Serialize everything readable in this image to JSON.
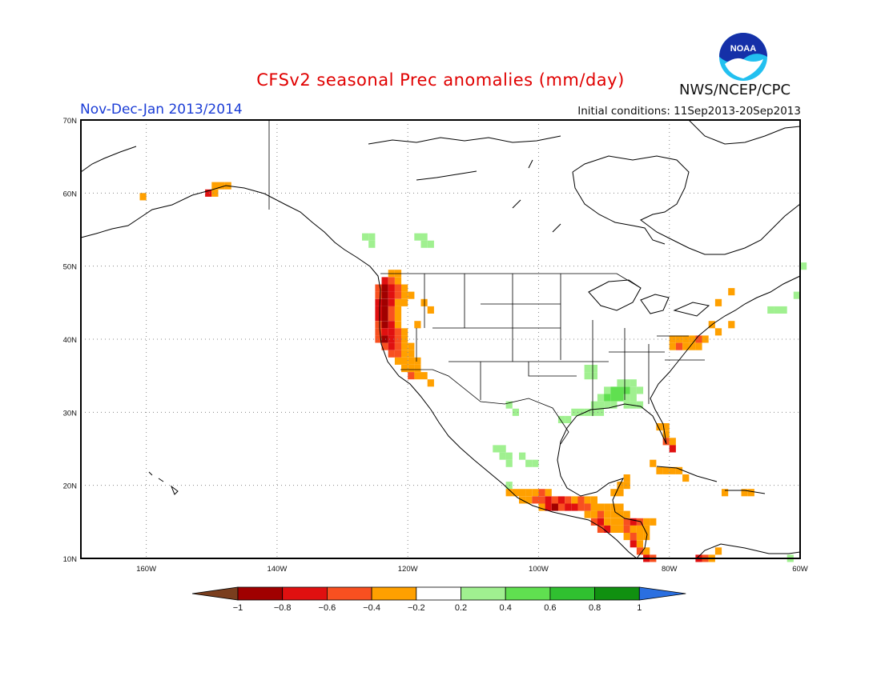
{
  "title": "CFSv2 seasonal Prec anomalies (mm/day)",
  "period": "Nov-Dec-Jan 2013/2014",
  "initial_conditions": "Initial conditions: 11Sep2013-20Sep2013",
  "org": "NWS/NCEP/CPC",
  "logo_text": "NOAA",
  "lat_labels": [
    "70N",
    "60N",
    "50N",
    "40N",
    "30N",
    "20N",
    "10N"
  ],
  "lon_labels": [
    "160W",
    "140W",
    "120W",
    "100W",
    "80W",
    "60W"
  ],
  "colorbar": {
    "tick_labels": [
      "−1",
      "−0.8",
      "−0.6",
      "−0.4",
      "−0.2",
      "0.2",
      "0.4",
      "0.6",
      "0.8",
      "1"
    ],
    "colors": [
      "#a00000",
      "#e01010",
      "#f85020",
      "#ffa000",
      "#ffffff",
      "#a0f090",
      "#60e050",
      "#30c030",
      "#109010"
    ],
    "low_color": "#7a3e1e",
    "high_color": "#2a6fe0"
  },
  "anomaly_colors": {
    "-1": "#a00000",
    "-0.8": "#e01010",
    "-0.6": "#f85020",
    "-0.4": "#ffa000",
    "0.4": "#a0f090",
    "0.6": "#60e050"
  }
}
